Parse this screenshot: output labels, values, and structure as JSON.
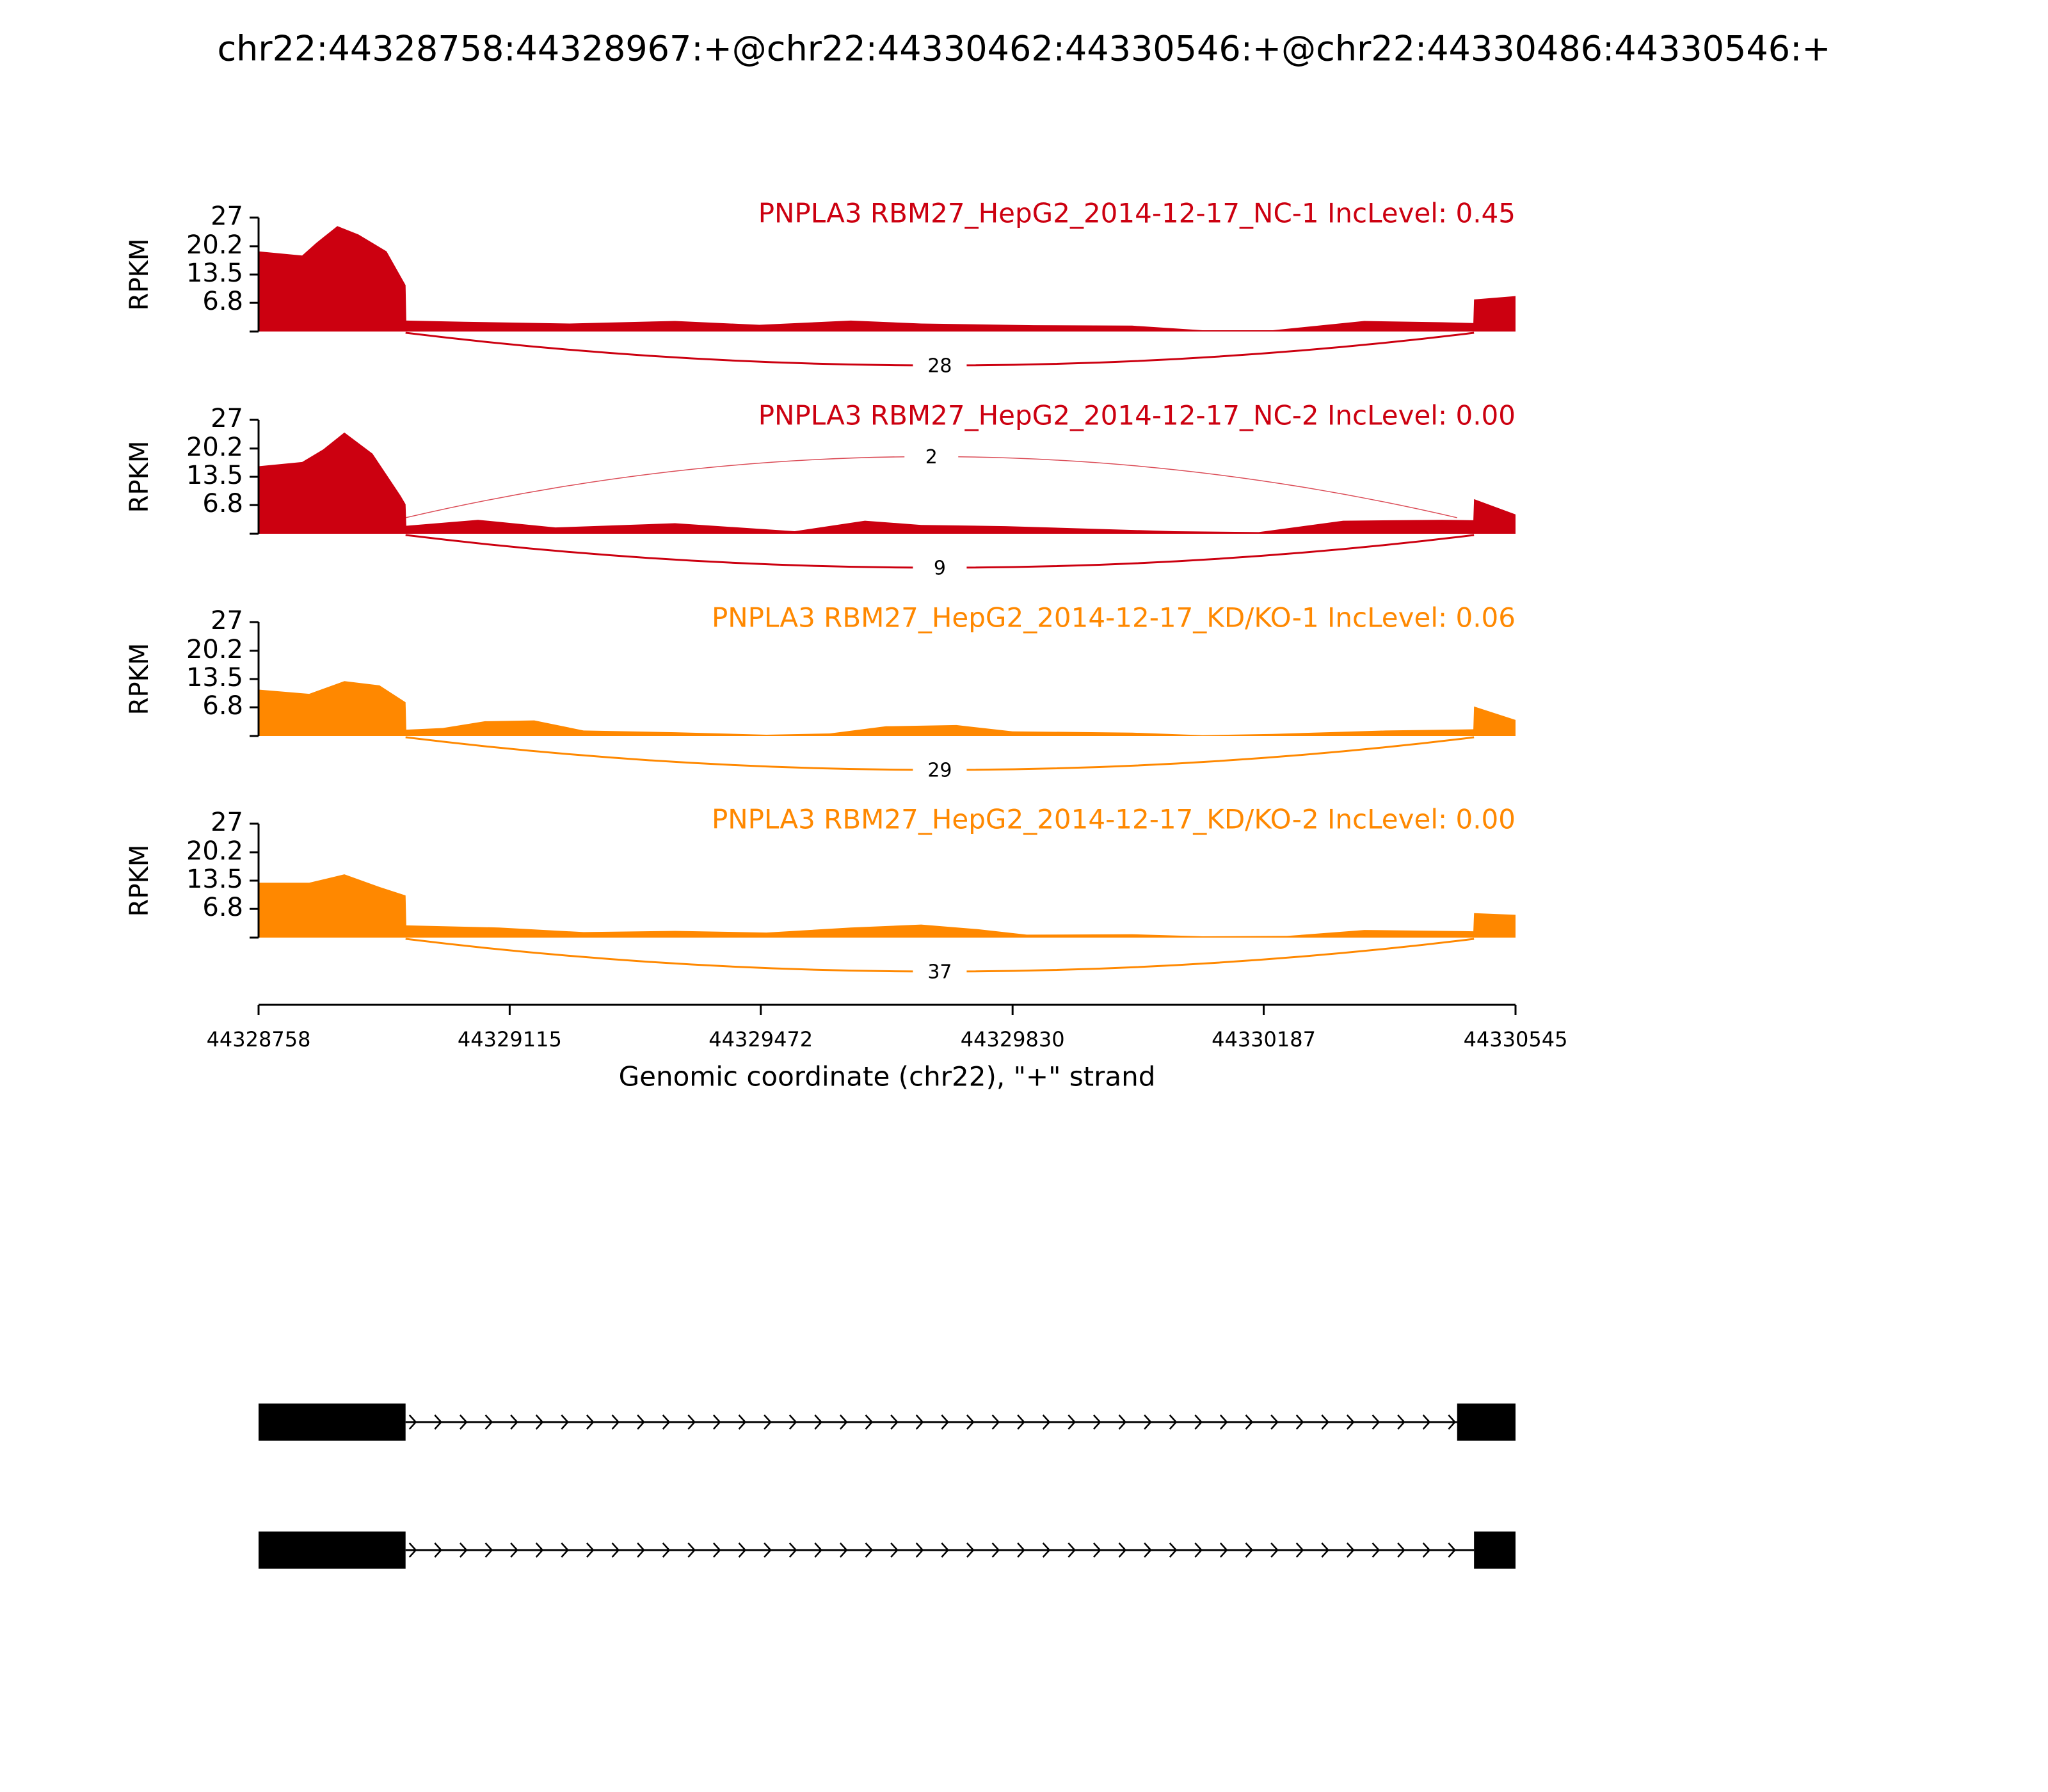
{
  "chart_data": {
    "type": "area",
    "title": "chr22:44328758:44328967:+@chr22:44330462:44330546:+@chr22:44330486:44330546:+",
    "xlabel": "Genomic coordinate (chr22), \"+\" strand",
    "ylabel": "RPKM",
    "xlim": [
      44328758,
      44330545
    ],
    "x_ticks": [
      "44328758",
      "44329115",
      "44329472",
      "44329830",
      "44330187",
      "44330545"
    ],
    "ylim": [
      0,
      27
    ],
    "y_ticks": [
      "27",
      "20.2",
      "13.5",
      "6.8"
    ],
    "colors": {
      "nc": "#cc0010",
      "kd": "#ff8800",
      "gene": "#000000"
    },
    "series": [
      {
        "name": "PNPLA3 RBM27_HepG2_2014-12-17_NC-1 IncLevel: 0.45",
        "color": "#cc0010",
        "profile": [
          [
            44328758,
            19
          ],
          [
            44328820,
            18
          ],
          [
            44328840,
            21
          ],
          [
            44328870,
            25
          ],
          [
            44328900,
            23
          ],
          [
            44328940,
            19
          ],
          [
            44328967,
            11
          ],
          [
            44328968,
            2.6
          ],
          [
            44329050,
            2.3
          ],
          [
            44329200,
            1.9
          ],
          [
            44329350,
            2.5
          ],
          [
            44329470,
            1.6
          ],
          [
            44329600,
            2.6
          ],
          [
            44329700,
            1.9
          ],
          [
            44329860,
            1.5
          ],
          [
            44330000,
            1.4
          ],
          [
            44330100,
            0.3
          ],
          [
            44330200,
            0.3
          ],
          [
            44330330,
            2.5
          ],
          [
            44330440,
            2.2
          ],
          [
            44330485,
            2
          ],
          [
            44330486,
            7.6
          ],
          [
            44330545,
            8.4
          ]
        ],
        "junctions": [
          {
            "from": 44328967,
            "to": 44330486,
            "count": "28",
            "side": "below"
          }
        ]
      },
      {
        "name": "PNPLA3 RBM27_HepG2_2014-12-17_NC-2 IncLevel: 0.00",
        "color": "#cc0010",
        "profile": [
          [
            44328758,
            16
          ],
          [
            44328820,
            17
          ],
          [
            44328850,
            20
          ],
          [
            44328880,
            24
          ],
          [
            44328920,
            19
          ],
          [
            44328960,
            9
          ],
          [
            44328967,
            7
          ],
          [
            44328968,
            1.9
          ],
          [
            44329070,
            3.3
          ],
          [
            44329180,
            1.5
          ],
          [
            44329350,
            2.5
          ],
          [
            44329520,
            0.6
          ],
          [
            44329620,
            3.1
          ],
          [
            44329700,
            2.1
          ],
          [
            44329820,
            1.8
          ],
          [
            44330060,
            0.6
          ],
          [
            44330180,
            0.4
          ],
          [
            44330300,
            3.1
          ],
          [
            44330440,
            3.3
          ],
          [
            44330485,
            3.2
          ],
          [
            44330486,
            8.2
          ],
          [
            44330545,
            4.6
          ]
        ],
        "junctions": [
          {
            "from": 44328967,
            "to": 44330462,
            "count": "2",
            "side": "above"
          },
          {
            "from": 44328967,
            "to": 44330486,
            "count": "9",
            "side": "below"
          }
        ]
      },
      {
        "name": "PNPLA3 RBM27_HepG2_2014-12-17_KD/KO-1 IncLevel: 0.06",
        "color": "#ff8800",
        "profile": [
          [
            44328758,
            11
          ],
          [
            44328830,
            10
          ],
          [
            44328880,
            13
          ],
          [
            44328930,
            12
          ],
          [
            44328967,
            8
          ],
          [
            44328968,
            1.5
          ],
          [
            44329020,
            1.9
          ],
          [
            44329080,
            3.5
          ],
          [
            44329150,
            3.7
          ],
          [
            44329220,
            1.3
          ],
          [
            44329350,
            0.9
          ],
          [
            44329480,
            0.3
          ],
          [
            44329570,
            0.6
          ],
          [
            44329650,
            2.3
          ],
          [
            44329750,
            2.6
          ],
          [
            44329830,
            1.1
          ],
          [
            44330000,
            0.8
          ],
          [
            44330100,
            0.2
          ],
          [
            44330200,
            0.5
          ],
          [
            44330360,
            1.3
          ],
          [
            44330485,
            1.6
          ],
          [
            44330486,
            7
          ],
          [
            44330545,
            3.8
          ]
        ],
        "junctions": [
          {
            "from": 44328967,
            "to": 44330486,
            "count": "29",
            "side": "below"
          }
        ]
      },
      {
        "name": "PNPLA3 RBM27_HepG2_2014-12-17_KD/KO-2 IncLevel: 0.00",
        "color": "#ff8800",
        "profile": [
          [
            44328758,
            13
          ],
          [
            44328830,
            13
          ],
          [
            44328880,
            15
          ],
          [
            44328930,
            12
          ],
          [
            44328967,
            10
          ],
          [
            44328968,
            2.9
          ],
          [
            44329100,
            2.4
          ],
          [
            44329220,
            1.3
          ],
          [
            44329350,
            1.6
          ],
          [
            44329480,
            1.2
          ],
          [
            44329600,
            2.4
          ],
          [
            44329700,
            3.1
          ],
          [
            44329780,
            2
          ],
          [
            44329850,
            0.7
          ],
          [
            44330000,
            0.8
          ],
          [
            44330100,
            0.3
          ],
          [
            44330220,
            0.4
          ],
          [
            44330330,
            1.8
          ],
          [
            44330485,
            1.5
          ],
          [
            44330486,
            5.8
          ],
          [
            44330545,
            5.4
          ]
        ],
        "junctions": [
          {
            "from": 44328967,
            "to": 44330486,
            "count": "37",
            "side": "below"
          }
        ]
      }
    ],
    "isoforms": [
      {
        "exons": [
          [
            44328758,
            44328967
          ],
          [
            44330462,
            44330545
          ]
        ]
      },
      {
        "exons": [
          [
            44328758,
            44328967
          ],
          [
            44330486,
            44330545
          ]
        ]
      }
    ]
  }
}
